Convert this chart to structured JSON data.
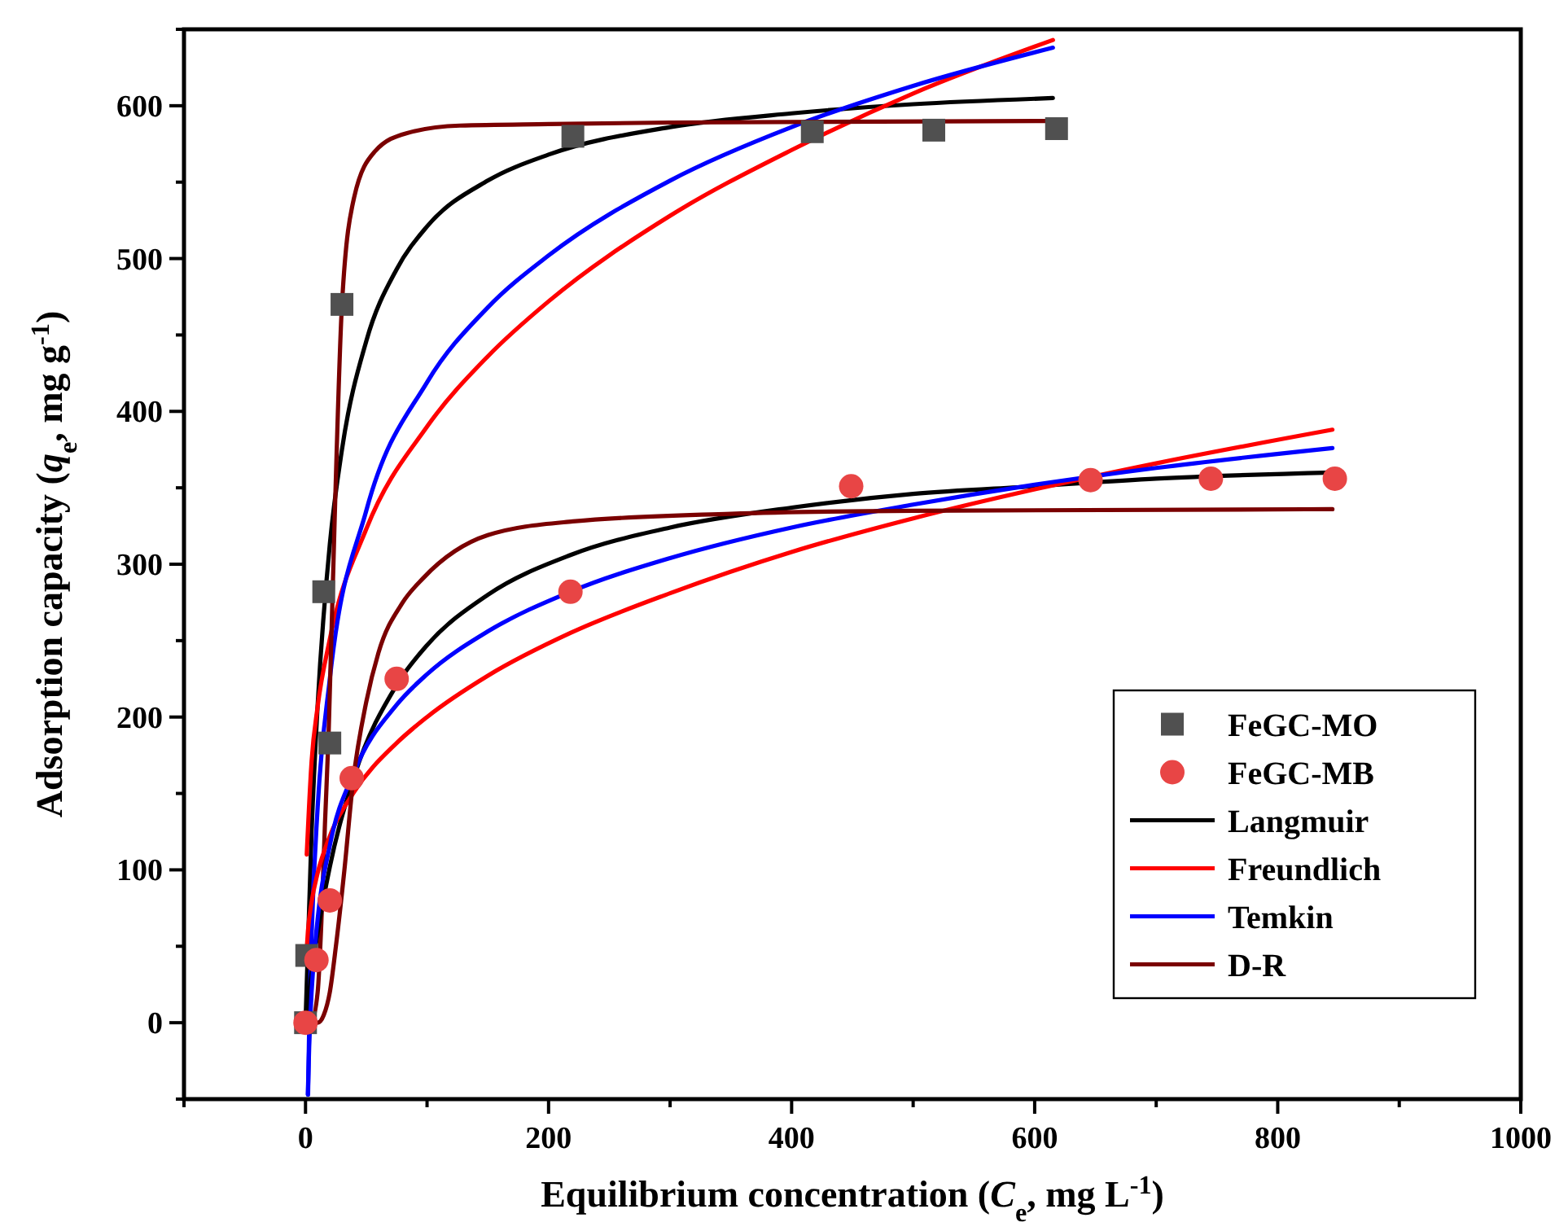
{
  "chart_data": {
    "type": "scatter",
    "xlabel": "Equilibrium concentration (C$_{e}$, mg L$^{-1}$)",
    "ylabel": "Adsorption capacity (q$_{e}$, mg g$^{-1}$)",
    "xlim": [
      -100,
      1000
    ],
    "xticks": [
      {
        "value": -100,
        "label": null
      },
      0,
      {
        "value": 100,
        "label": null
      },
      200,
      {
        "value": 300,
        "label": null
      },
      400,
      {
        "value": 500,
        "label": null
      },
      600,
      {
        "value": 700,
        "label": null
      },
      800,
      {
        "value": 900,
        "label": null
      },
      1000
    ],
    "ylim": [
      -50,
      650
    ],
    "yticks": [
      {
        "value": -50,
        "label": null
      },
      0,
      {
        "value": 50,
        "label": null
      },
      100,
      {
        "value": 150,
        "label": null
      },
      200,
      {
        "value": 250,
        "label": null
      },
      300,
      {
        "value": 350,
        "label": null
      },
      400,
      {
        "value": 450,
        "label": null
      },
      500,
      {
        "value": 550,
        "label": null
      },
      600,
      {
        "value": 650,
        "label": null
      }
    ],
    "grid": false,
    "legend": "bottom right",
    "series": [
      {
        "name": "FeGC-MO",
        "marker": "square",
        "color": "#505050",
        "x": [
          0,
          1,
          15,
          20,
          30,
          220,
          417,
          517,
          618
        ],
        "values": [
          0,
          44,
          282,
          183,
          470,
          580,
          583,
          584,
          585
        ]
      },
      {
        "name": "FeGC-MB",
        "marker": "circle",
        "color": "#e84545",
        "x": [
          0,
          9,
          20,
          38,
          75,
          218,
          449,
          646,
          745,
          847
        ],
        "values": [
          0,
          41,
          80,
          160,
          225,
          282,
          351,
          355,
          356,
          356
        ]
      },
      {
        "name": "Langmuir",
        "type": "line",
        "color": "#000000",
        "x": [
          0,
          5,
          10,
          20,
          30,
          50,
          75,
          100,
          150,
          200,
          300,
          400,
          500,
          615
        ],
        "values": [
          0,
          125,
          208,
          313,
          375,
          446,
          493,
          521,
          551,
          568,
          586,
          595,
          601,
          605
        ]
      },
      {
        "name": "Freundlich",
        "type": "line",
        "color": "#ff0000",
        "x": [
          1,
          5,
          10,
          20,
          50,
          100,
          150,
          200,
          300,
          400,
          500,
          615
        ],
        "values": [
          110,
          171,
          207,
          251,
          323,
          390,
          436,
          472,
          528,
          571,
          608,
          643
        ]
      },
      {
        "name": "Temkin",
        "type": "line",
        "color": "#0000ff",
        "x": [
          2.1,
          3,
          5,
          10,
          20,
          50,
          100,
          150,
          200,
          300,
          400,
          500,
          615
        ],
        "values": [
          -47,
          -4,
          57,
          141,
          225,
          335,
          419,
          468,
          502,
          551,
          586,
          613,
          638
        ]
      },
      {
        "name": "D-R",
        "type": "line",
        "color": "#7a0000",
        "x": [
          0,
          5,
          10,
          13,
          16,
          19,
          24,
          30,
          40,
          57,
          83,
          127,
          200,
          300,
          615
        ],
        "values": [
          0,
          1,
          20,
          65,
          130,
          189,
          330,
          470,
          540,
          570,
          582,
          587,
          588,
          589,
          590
        ]
      },
      {
        "type": "line",
        "color": "#000000",
        "x": [
          0,
          5,
          10,
          20,
          40,
          75,
          100,
          150,
          218,
          300,
          400,
          500,
          600,
          700,
          845
        ],
        "values": [
          0,
          32,
          59,
          102,
          161,
          221,
          247,
          280,
          306,
          324,
          337,
          346,
          351,
          356,
          360
        ]
      },
      {
        "type": "line",
        "color": "#ff0000",
        "x": [
          1,
          2,
          5,
          10,
          20,
          40,
          75,
          100,
          150,
          218,
          300,
          400,
          500,
          600,
          700,
          845
        ],
        "values": [
          48,
          60,
          79,
          98,
          122,
          151,
          183,
          200,
          227,
          255,
          281,
          308,
          330,
          349,
          366,
          388
        ]
      },
      {
        "type": "line",
        "color": "#0000ff",
        "x": [
          1.9,
          3,
          5,
          10,
          20,
          40,
          75,
          100,
          150,
          218,
          300,
          400,
          500,
          600,
          700,
          845
        ],
        "values": [
          -47,
          -16,
          20,
          68,
          116,
          164,
          208,
          228,
          256,
          282,
          304,
          324,
          339,
          352,
          363,
          376
        ]
      },
      {
        "type": "line",
        "color": "#7a0000",
        "x": [
          0,
          10,
          15,
          20,
          25,
          32,
          39,
          50,
          60,
          80,
          97,
          150,
          220,
          350,
          500,
          845
        ],
        "values": [
          0,
          0,
          5,
          20,
          50,
          100,
          157,
          210,
          242,
          275,
          291,
          319,
          328,
          333,
          335,
          336
        ]
      }
    ]
  }
}
